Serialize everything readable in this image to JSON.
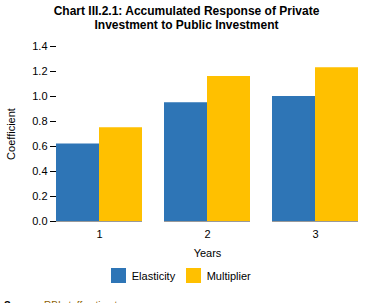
{
  "chart_data": {
    "type": "bar",
    "title": "Chart III.2.1: Accumulated Response of Private\nInvestment to Public Investment",
    "xlabel": "Years",
    "ylabel": "Coefficient",
    "categories": [
      1,
      2,
      3
    ],
    "series": [
      {
        "name": "Elasticity",
        "color": "#2E75B6",
        "values": [
          0.62,
          0.95,
          1.0
        ]
      },
      {
        "name": "Multiplier",
        "color": "#FFC000",
        "values": [
          0.75,
          1.16,
          1.23
        ]
      }
    ],
    "ylim": [
      0.0,
      1.4
    ],
    "yticks": [
      {
        "value": 0,
        "label": "0.0"
      },
      0.2,
      0.4,
      0.6,
      0.8,
      {
        "value": 1,
        "label": "1.0"
      },
      1.2,
      1.4
    ],
    "grid": false,
    "legend": "bottom",
    "annotations": [
      "Source:",
      "RBI staff estimates."
    ]
  }
}
